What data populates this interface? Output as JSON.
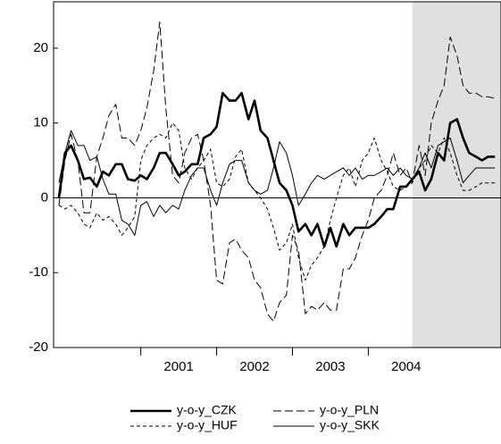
{
  "chart_data": {
    "type": "line",
    "x": [
      1999.92,
      2000.0,
      2000.08,
      2000.17,
      2000.25,
      2000.33,
      2000.42,
      2000.5,
      2000.58,
      2000.67,
      2000.75,
      2000.83,
      2000.92,
      2001.0,
      2001.08,
      2001.17,
      2001.25,
      2001.33,
      2001.42,
      2001.5,
      2001.58,
      2001.67,
      2001.75,
      2001.83,
      2001.92,
      2002.0,
      2002.08,
      2002.17,
      2002.25,
      2002.33,
      2002.42,
      2002.5,
      2002.58,
      2002.67,
      2002.75,
      2002.83,
      2002.92,
      2003.0,
      2003.08,
      2003.17,
      2003.25,
      2003.33,
      2003.42,
      2003.5,
      2003.58,
      2003.67,
      2003.75,
      2003.83,
      2003.92,
      2004.0,
      2004.08,
      2004.17,
      2004.25,
      2004.33,
      2004.42,
      2004.5,
      2004.58,
      2004.67,
      2004.75,
      2004.83,
      2004.92,
      2005.0,
      2005.08,
      2005.17,
      2005.25,
      2005.33,
      2005.42,
      2005.5,
      2005.58,
      2005.67
    ],
    "series": [
      {
        "name": "y-o-y_CZK",
        "color": "#000000",
        "width": 2.6,
        "dash": "solid",
        "values": [
          0,
          6,
          7,
          5,
          2.5,
          2.7,
          1.5,
          3.5,
          3,
          4.5,
          4.5,
          2.5,
          2.3,
          3,
          2.5,
          4,
          6,
          6,
          4.5,
          3,
          3.5,
          4.5,
          4.5,
          8,
          8.5,
          9.5,
          14,
          13,
          13,
          14,
          10.5,
          13,
          9,
          8,
          5,
          2,
          1,
          -1,
          -4.5,
          -3.5,
          -5,
          -3.5,
          -6.5,
          -4,
          -6.5,
          -3.5,
          -5,
          -4,
          -4,
          -4,
          -3.5,
          -2.5,
          -1.5,
          -1.5,
          1.5,
          1.5,
          2.5,
          3.5,
          1,
          2.5,
          6,
          5,
          10,
          10.5,
          8,
          6,
          5.5,
          5,
          5.5,
          5.5
        ]
      },
      {
        "name": "y-o-y_PLN",
        "color": "#000000",
        "width": 1,
        "dash": "long",
        "values": [
          -1,
          5,
          8.5,
          5,
          -2,
          -2,
          5.5,
          8,
          11,
          12.5,
          8,
          8,
          7,
          9,
          12,
          17,
          23.5,
          12,
          3,
          2,
          6,
          8,
          8.5,
          5,
          -1,
          -11,
          -11.5,
          -6,
          -5.5,
          -7,
          -8,
          -11,
          -12,
          -15.5,
          -16.5,
          -14,
          -13,
          -5,
          -7,
          -15.5,
          -14.5,
          -15,
          -14,
          -15,
          -15,
          -9.5,
          -9.5,
          -8,
          -5,
          -3,
          0,
          1,
          3,
          6,
          3,
          4,
          2,
          7,
          3,
          10,
          13,
          15,
          21.5,
          19,
          15,
          14,
          14,
          13.5,
          13.5,
          13.3
        ]
      },
      {
        "name": "y-o-y_HUF",
        "color": "#000000",
        "width": 1,
        "dash": "short",
        "values": [
          -1,
          -1.5,
          -1,
          -2,
          -3.5,
          -4,
          -2,
          -3,
          -2.5,
          -3.5,
          -5,
          -4,
          -2.5,
          5,
          7,
          8,
          8.5,
          8,
          10,
          9,
          4,
          2.5,
          4,
          5,
          6.5,
          2,
          1.5,
          2.5,
          5.5,
          6.5,
          2,
          1,
          0,
          -1.5,
          -4,
          -7,
          -6,
          -3.5,
          -8,
          -11,
          -9,
          -8,
          -6.5,
          -3,
          0,
          3,
          4,
          1.5,
          5,
          6,
          8,
          5,
          3.5,
          1.5,
          1,
          1.5,
          2,
          4,
          5,
          7,
          6,
          8,
          6,
          3,
          1,
          1,
          1.5,
          2,
          2,
          2
        ]
      },
      {
        "name": "y-o-y_SKK",
        "color": "#000000",
        "width": 1,
        "dash": "solid",
        "values": [
          2,
          6,
          9,
          7,
          7,
          5,
          5.5,
          2.5,
          0.5,
          0.5,
          -3,
          -3.5,
          -5,
          -1,
          -0.5,
          -2.5,
          -1,
          -2,
          -1,
          -1.5,
          1,
          3,
          4,
          4,
          1,
          -1,
          2,
          4.5,
          5,
          5,
          2,
          1,
          0.5,
          1,
          4,
          7.5,
          6,
          3,
          -1,
          0.5,
          2,
          3,
          2.5,
          3,
          3.5,
          4,
          3,
          4,
          2.5,
          3,
          3,
          3.5,
          4,
          3,
          4,
          3,
          2.5,
          4,
          6,
          4,
          7,
          7.5,
          8,
          5,
          2,
          3,
          4,
          4,
          4,
          4
        ]
      }
    ],
    "xlim": [
      1999.85,
      2005.75
    ],
    "xticks": [
      2001,
      2002,
      2003,
      2004
    ],
    "ylim": [
      -20,
      26.2
    ],
    "yticks": [
      -20,
      -10,
      0,
      10,
      20
    ],
    "hline": 0,
    "shaded_region": {
      "xlim": [
        2004.58,
        2005.75
      ],
      "color": "#e0e0e0"
    },
    "legend": "bottom"
  }
}
